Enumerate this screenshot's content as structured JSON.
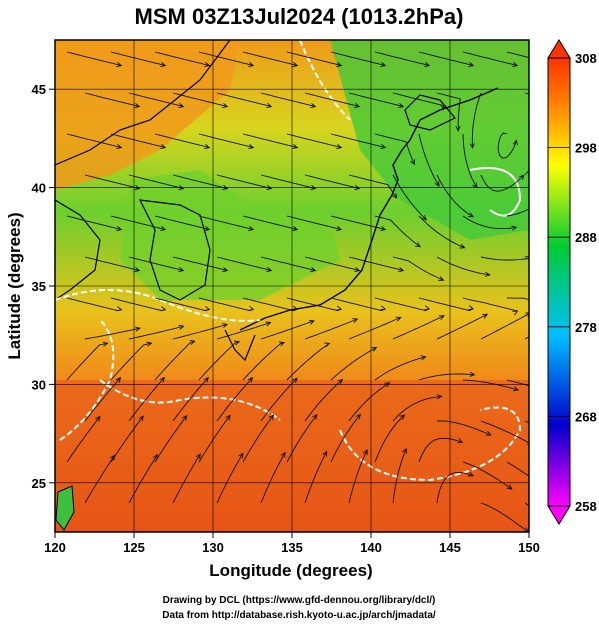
{
  "title": "MSM 03Z13Jul2024 (1013.2hPa)",
  "x_axis_label": "Longitude (degrees)",
  "y_axis_label": "Latitude  (degrees)",
  "x_ticks": [
    "120",
    "125",
    "130",
    "135",
    "140",
    "145",
    "150"
  ],
  "y_ticks": [
    "25",
    "30",
    "35",
    "40",
    "45"
  ],
  "colorbar_ticks": [
    "308",
    "298",
    "288",
    "278",
    "268",
    "258"
  ],
  "colorbar_colors": [
    "#ff00ff",
    "#0000cc",
    "#00bfff",
    "#00cc33",
    "#ffff00",
    "#ff8000",
    "#ff3300"
  ],
  "credit_line1": "Drawing by DCL (https://www.gfd-dennou.org/library/dcl/)",
  "credit_line2": "Data from http://database.rish.kyoto-u.ac.jp/arch/jmadata/",
  "map": {
    "lon_range": [
      120,
      150
    ],
    "lat_range": [
      22.5,
      47.5
    ],
    "colorbar_range": [
      258,
      308
    ],
    "background_colors": {
      "ocean_south": "#e85a12",
      "mid": "#f2a019",
      "north": "#5ccc33"
    }
  }
}
